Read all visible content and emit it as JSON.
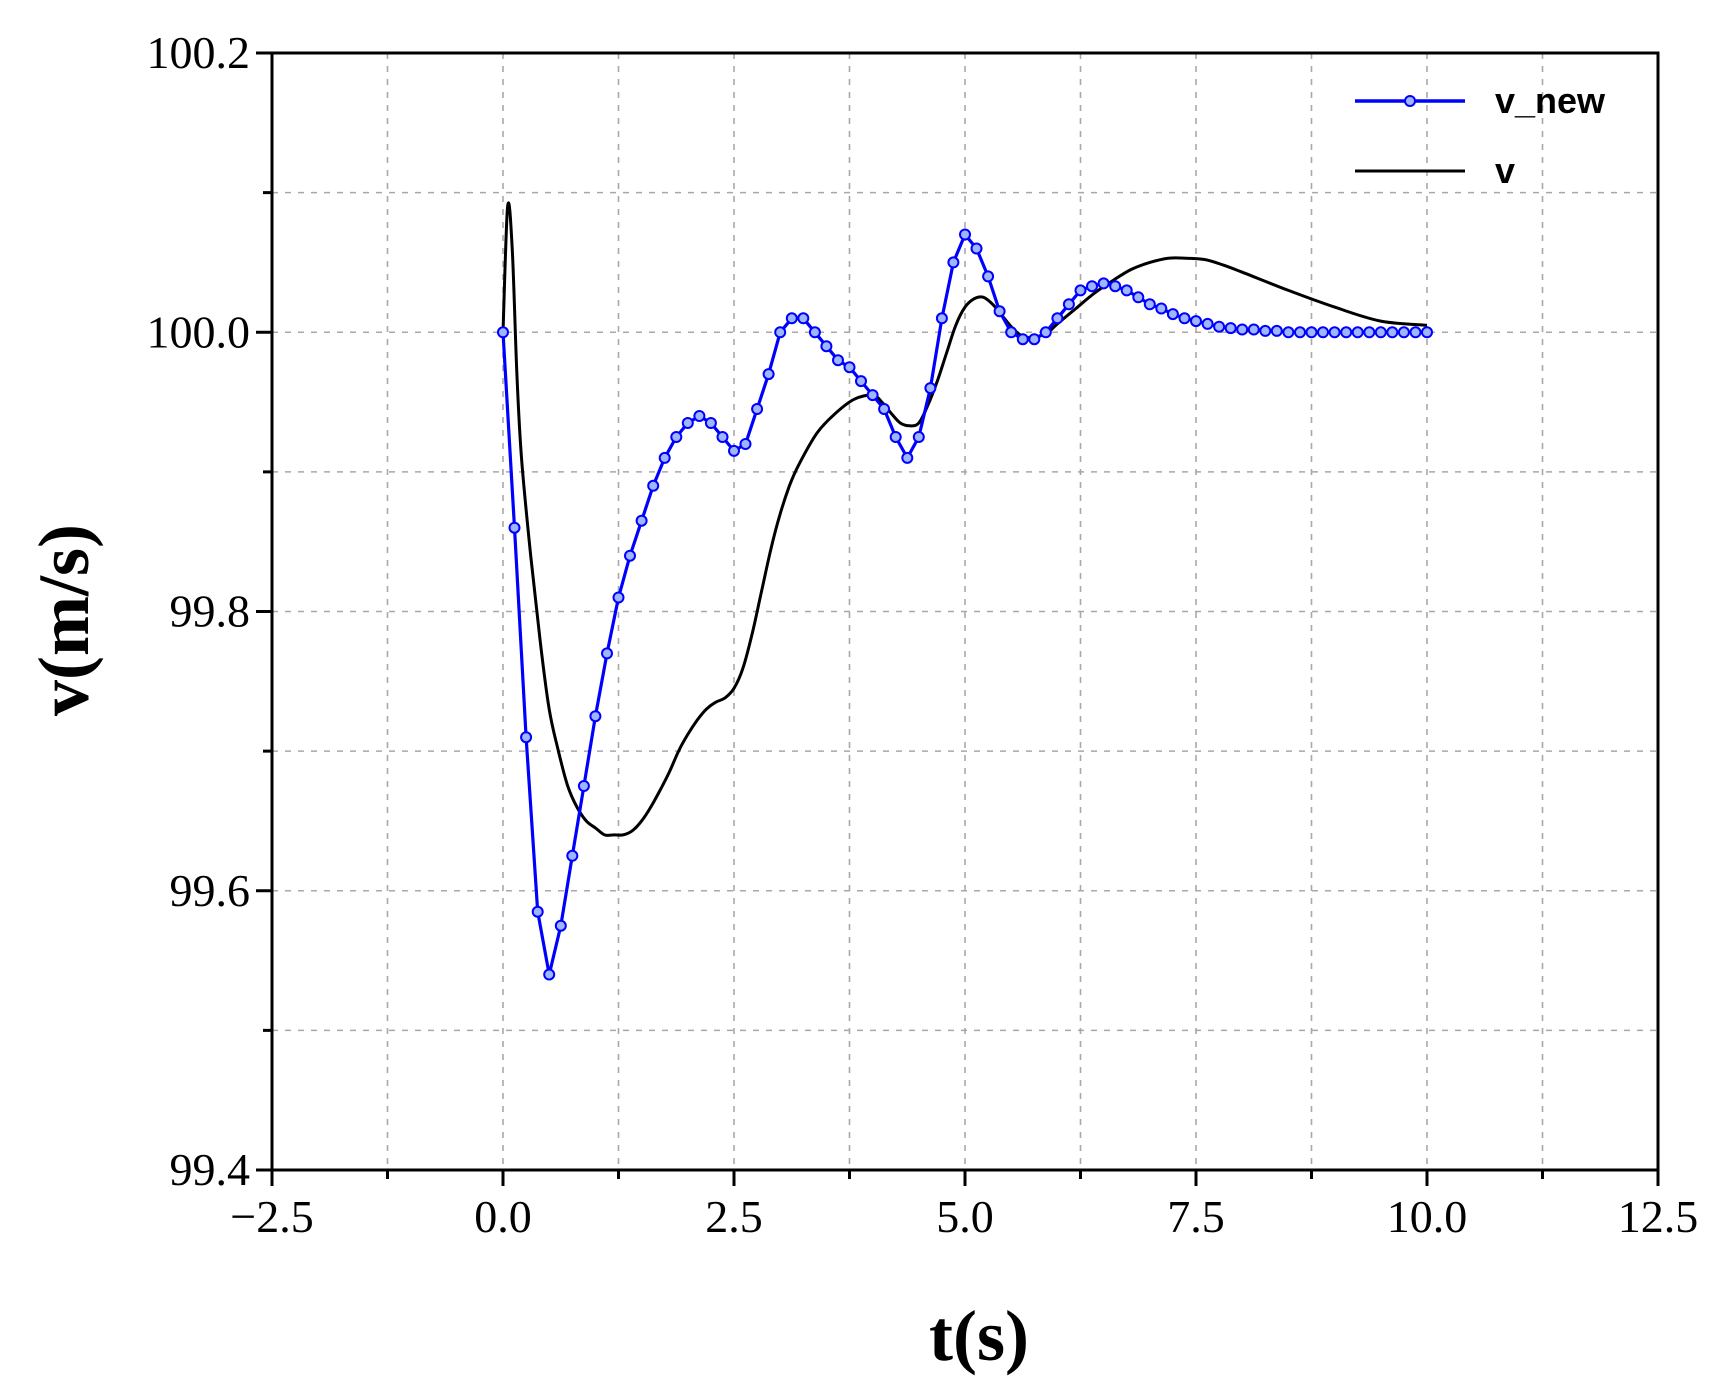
{
  "chart_data": {
    "type": "line",
    "xlabel": "t(s)",
    "ylabel": "v(m/s)",
    "xlim": [
      -2.5,
      12.5
    ],
    "ylim": [
      99.4,
      100.2
    ],
    "xticks": [
      -2.5,
      0.0,
      2.5,
      5.0,
      7.5,
      10.0,
      12.5
    ],
    "xtick_labels": [
      "−2.5",
      "0.0",
      "2.5",
      "5.0",
      "7.5",
      "10.0",
      "12.5"
    ],
    "yticks": [
      99.4,
      99.6,
      99.8,
      100.0,
      100.2
    ],
    "ytick_labels": [
      "99.4",
      "99.6",
      "99.8",
      "100.0",
      "100.2"
    ],
    "grid": true,
    "legend_position": "top-right",
    "series": [
      {
        "name": "v_new",
        "color": "#0000ff",
        "marker": "circle",
        "x": [
          0.0,
          0.125,
          0.25,
          0.375,
          0.5,
          0.625,
          0.75,
          0.875,
          1.0,
          1.125,
          1.25,
          1.375,
          1.5,
          1.625,
          1.75,
          1.875,
          2.0,
          2.125,
          2.25,
          2.375,
          2.5,
          2.625,
          2.75,
          2.875,
          3.0,
          3.125,
          3.25,
          3.375,
          3.5,
          3.625,
          3.75,
          3.875,
          4.0,
          4.125,
          4.25,
          4.375,
          4.5,
          4.625,
          4.75,
          4.875,
          5.0,
          5.125,
          5.25,
          5.375,
          5.5,
          5.625,
          5.75,
          5.875,
          6.0,
          6.125,
          6.25,
          6.375,
          6.5,
          6.625,
          6.75,
          6.875,
          7.0,
          7.125,
          7.25,
          7.375,
          7.5,
          7.625,
          7.75,
          7.875,
          8.0,
          8.125,
          8.25,
          8.375,
          8.5,
          8.625,
          8.75,
          8.875,
          9.0,
          9.125,
          9.25,
          9.375,
          9.5,
          9.625,
          9.75,
          9.875,
          10.0
        ],
        "y": [
          100.0,
          99.86,
          99.71,
          99.585,
          99.54,
          99.575,
          99.625,
          99.675,
          99.725,
          99.77,
          99.81,
          99.84,
          99.865,
          99.89,
          99.91,
          99.925,
          99.935,
          99.94,
          99.935,
          99.925,
          99.915,
          99.92,
          99.945,
          99.97,
          100.0,
          100.01,
          100.01,
          100.0,
          99.99,
          99.98,
          99.975,
          99.965,
          99.955,
          99.945,
          99.925,
          99.91,
          99.925,
          99.96,
          100.01,
          100.05,
          100.07,
          100.06,
          100.04,
          100.015,
          100.0,
          99.995,
          99.995,
          100.0,
          100.01,
          100.02,
          100.03,
          100.033,
          100.035,
          100.033,
          100.03,
          100.025,
          100.02,
          100.017,
          100.013,
          100.01,
          100.008,
          100.006,
          100.004,
          100.003,
          100.002,
          100.002,
          100.001,
          100.001,
          100.0,
          100.0,
          100.0,
          100.0,
          100.0,
          100.0,
          100.0,
          100.0,
          100.0,
          100.0,
          100.0,
          100.0,
          100.0
        ]
      },
      {
        "name": "v",
        "color": "#000000",
        "marker": "none",
        "x": [
          0.0,
          0.05,
          0.1,
          0.15,
          0.2,
          0.3,
          0.4,
          0.5,
          0.6,
          0.7,
          0.8,
          0.9,
          1.0,
          1.1,
          1.2,
          1.3,
          1.4,
          1.5,
          1.6,
          1.7,
          1.8,
          1.9,
          2.0,
          2.1,
          2.2,
          2.3,
          2.4,
          2.5,
          2.6,
          2.7,
          2.8,
          2.9,
          3.0,
          3.1,
          3.2,
          3.4,
          3.6,
          3.8,
          4.0,
          4.1,
          4.2,
          4.3,
          4.4,
          4.5,
          4.6,
          4.7,
          4.8,
          4.9,
          5.0,
          5.1,
          5.2,
          5.3,
          5.4,
          5.5,
          5.6,
          5.7,
          5.8,
          5.9,
          6.0,
          6.2,
          6.4,
          6.6,
          6.8,
          7.0,
          7.2,
          7.4,
          7.6,
          7.8,
          8.0,
          8.5,
          9.0,
          9.5,
          10.0
        ],
        "y": [
          100.0,
          100.09,
          100.06,
          99.97,
          99.91,
          99.84,
          99.78,
          99.73,
          99.7,
          99.675,
          99.66,
          99.65,
          99.645,
          99.64,
          99.64,
          99.64,
          99.643,
          99.65,
          99.66,
          99.672,
          99.685,
          99.7,
          99.712,
          99.722,
          99.73,
          99.735,
          99.738,
          99.745,
          99.76,
          99.785,
          99.815,
          99.845,
          99.87,
          99.89,
          99.905,
          99.928,
          99.942,
          99.952,
          99.955,
          99.95,
          99.942,
          99.935,
          99.933,
          99.935,
          99.948,
          99.965,
          99.985,
          100.005,
          100.018,
          100.024,
          100.025,
          100.02,
          100.012,
          100.004,
          99.998,
          99.996,
          99.997,
          100.0,
          100.006,
          100.017,
          100.028,
          100.037,
          100.045,
          100.05,
          100.053,
          100.053,
          100.052,
          100.048,
          100.043,
          100.03,
          100.018,
          100.008,
          100.005
        ]
      }
    ]
  }
}
